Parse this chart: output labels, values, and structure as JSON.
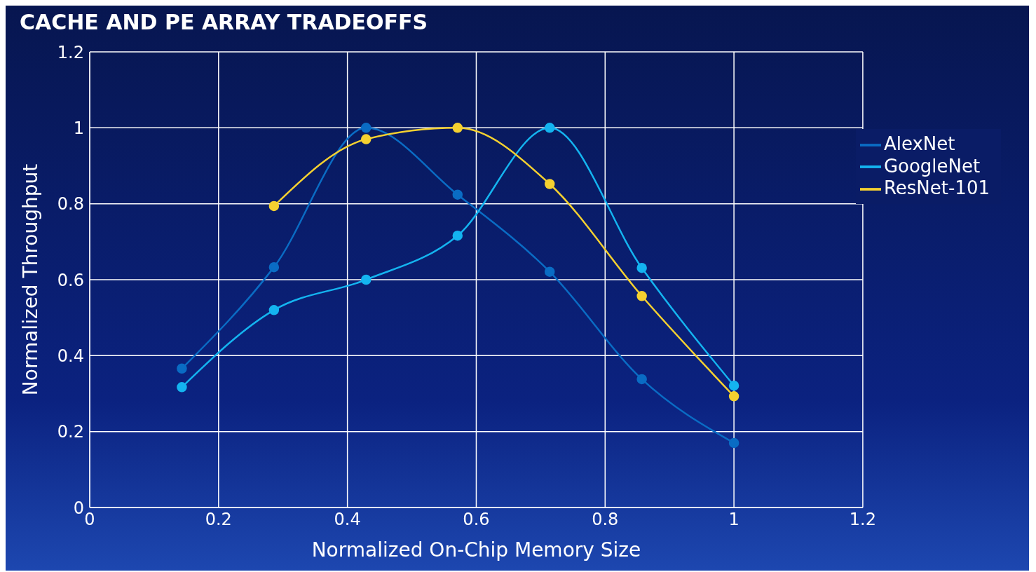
{
  "chart_data": {
    "type": "line",
    "title": "CACHE AND PE ARRAY TRADEOFFS",
    "xlabel": "Normalized On-Chip Memory Size",
    "ylabel": "Normalized Throughput",
    "xlim": [
      0,
      1.2
    ],
    "xticks": [
      0,
      0.2,
      0.4,
      0.6,
      0.8,
      1,
      1.2
    ],
    "ylim": [
      0,
      1.2
    ],
    "yticks": [
      0,
      0.2,
      0.4,
      0.6,
      0.8,
      1,
      1.2
    ],
    "grid": true,
    "legend": "top right",
    "marker": "circle",
    "line_style": "solid",
    "series": [
      {
        "name": "AlexNet",
        "color": "#0a6cc4",
        "x": [
          0.143,
          0.286,
          0.429,
          0.571,
          0.714,
          0.857,
          1
        ],
        "values": [
          0.366,
          0.633,
          1.0,
          0.824,
          0.621,
          0.338,
          0.17
        ]
      },
      {
        "name": "GoogleNet",
        "color": "#14b4f0",
        "x": [
          0.143,
          0.286,
          0.429,
          0.571,
          0.714,
          0.857,
          1
        ],
        "values": [
          0.317,
          0.52,
          0.6,
          0.716,
          1.0,
          0.631,
          0.321
        ]
      },
      {
        "name": "ResNet-101",
        "color": "#f5d130",
        "x": [
          0.286,
          0.429,
          0.571,
          0.714,
          0.857,
          1
        ],
        "values": [
          0.794,
          0.97,
          1.0,
          0.852,
          0.557,
          0.293
        ]
      }
    ]
  }
}
